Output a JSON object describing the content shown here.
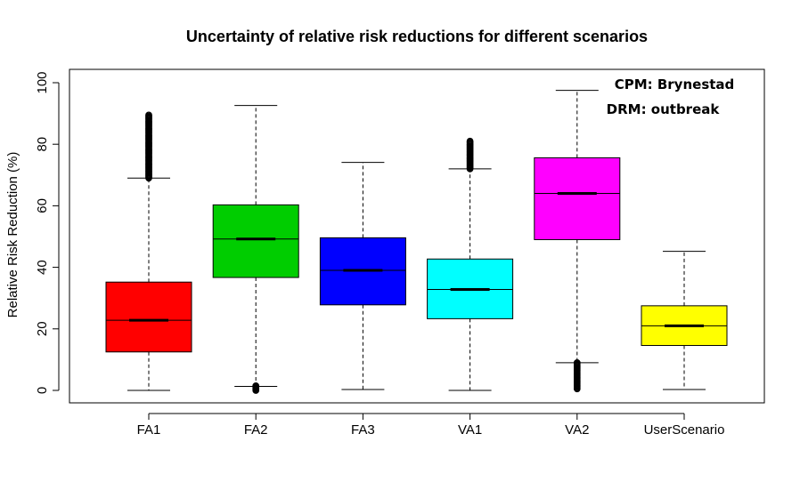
{
  "chart_data": {
    "type": "boxplot",
    "title": "Uncertainty of relative risk reductions for different scenarios",
    "xlabel": "",
    "ylabel": "Relative Risk Reduction (%)",
    "ylim": [
      -4,
      103
    ],
    "yticks": [
      "0",
      "20",
      "40",
      "60",
      "80",
      "100"
    ],
    "categories": [
      "FA1",
      "FA2",
      "FA3",
      "VA1",
      "VA2",
      "UserScenario"
    ],
    "series": [
      {
        "category": "FA1",
        "color": "#ff0000",
        "whisker_low": 0,
        "q1": 12.5,
        "median": 22.8,
        "q3": 35.2,
        "whisker_high": 69,
        "outliers_range": [
          69,
          89.5
        ]
      },
      {
        "category": "FA2",
        "color": "#00cd00",
        "whisker_low": 1.3,
        "q1": 36.7,
        "median": 49.2,
        "q3": 60.3,
        "whisker_high": 92.6,
        "outliers_range": [
          0,
          1.5
        ]
      },
      {
        "category": "FA3",
        "color": "#0000ff",
        "whisker_low": 0.3,
        "q1": 27.8,
        "median": 39,
        "q3": 49.6,
        "whisker_high": 74.1,
        "outliers_range": null
      },
      {
        "category": "VA1",
        "color": "#00ffff",
        "whisker_low": 0,
        "q1": 23.3,
        "median": 32.8,
        "q3": 42.7,
        "whisker_high": 72,
        "outliers_range": [
          72,
          81
        ]
      },
      {
        "category": "VA2",
        "color": "#ff00ff",
        "whisker_low": 9,
        "q1": 49,
        "median": 64,
        "q3": 75.6,
        "whisker_high": 97.5,
        "outliers_range": [
          0.5,
          9
        ]
      },
      {
        "category": "UserScenario",
        "color": "#ffff00",
        "whisker_low": 0.3,
        "q1": 14.6,
        "median": 21,
        "q3": 27.5,
        "whisker_high": 45.2,
        "outliers_range": null
      }
    ],
    "annotations": [
      "CPM: Brynestad",
      "DRM: outbreak"
    ],
    "legend": "none",
    "grid": false
  }
}
